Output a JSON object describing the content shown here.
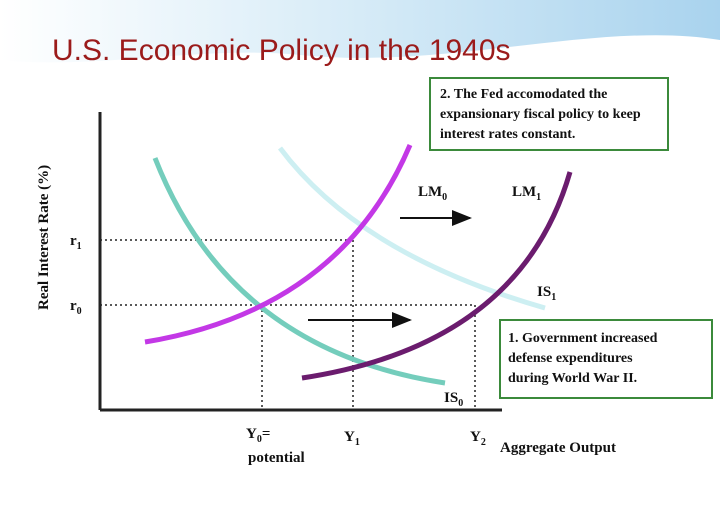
{
  "title": "U.S. Economic Policy in the 1940s",
  "notes": [
    {
      "lines": [
        "2. The Fed accomodated the",
        "expansionary fiscal policy to keep",
        "interest rates constant."
      ]
    },
    {
      "lines": [
        "1. Government increased",
        "defense expenditures",
        "during World War II."
      ]
    }
  ],
  "axes": {
    "y_label": "Real Interest Rate (%)",
    "x_label": "Aggregate Output"
  },
  "rate_labels": [
    {
      "base": "r",
      "sub": "1"
    },
    {
      "base": "r",
      "sub": "0"
    }
  ],
  "output_labels": [
    {
      "base": "Y",
      "sub": "0",
      "suffix": "=",
      "below": "potential"
    },
    {
      "base": "Y",
      "sub": "1"
    },
    {
      "base": "Y",
      "sub": "2"
    }
  ],
  "curve_labels": [
    {
      "base": "LM",
      "sub": "0"
    },
    {
      "base": "LM",
      "sub": "1"
    },
    {
      "base": "IS",
      "sub": "0"
    },
    {
      "base": "IS",
      "sub": "1"
    }
  ]
}
